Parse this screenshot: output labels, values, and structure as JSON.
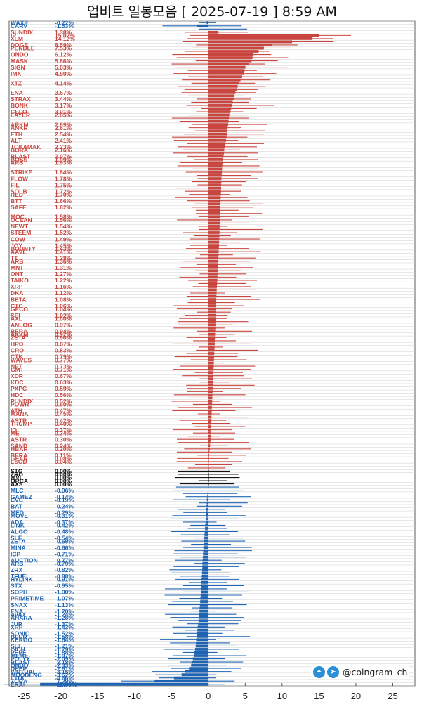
{
  "title": "업비트 일봉모음 [ 2025-07-19 ]  8:59 AM",
  "watermark": {
    "handle": "@coingram_ch",
    "icons": [
      "twitter-icon",
      "telegram-icon"
    ]
  },
  "colors": {
    "positive": "#c9453f",
    "zero": "#111111",
    "negative": "#1f64b3",
    "grid": "#cfcfcf"
  },
  "chart_data": {
    "type": "bar",
    "orientation": "horizontal",
    "xlim": [
      -27,
      28
    ],
    "xticks": [
      -25,
      -20,
      -15,
      -10,
      -5,
      0,
      5,
      10,
      15,
      20,
      25
    ],
    "grid": true,
    "rows_total": 209,
    "visible_labels": [
      {
        "row": 0,
        "name": "WAXP",
        "pct": "-0.22%"
      },
      {
        "row": 1,
        "name": "CARV",
        "pct": "-1.53%"
      },
      {
        "row": 3,
        "name": "SUNDIX",
        "pct": "1.38%"
      },
      {
        "row": 4,
        "name": "IP",
        "pct": "15.02%"
      },
      {
        "row": 5,
        "name": "XLM",
        "pct": "14.12%"
      },
      {
        "row": 7,
        "name": "DOGE",
        "pct": "8.59%"
      },
      {
        "row": 8,
        "name": "PENDLE",
        "pct": "7.53%"
      },
      {
        "row": 10,
        "name": "ONDO",
        "pct": "6.12%"
      },
      {
        "row": 12,
        "name": "MASK",
        "pct": "5.86%"
      },
      {
        "row": 14,
        "name": "SIGN",
        "pct": "5.03%"
      },
      {
        "row": 16,
        "name": "IMX",
        "pct": "4.80%"
      },
      {
        "row": 19,
        "name": "XTZ",
        "pct": "4.14%"
      },
      {
        "row": 22,
        "name": "ENA",
        "pct": "3.67%"
      },
      {
        "row": 24,
        "name": "STRAX",
        "pct": "3.44%"
      },
      {
        "row": 26,
        "name": "BONK",
        "pct": "3.17%"
      },
      {
        "row": 28,
        "name": "CELO",
        "pct": "3.01%"
      },
      {
        "row": 29,
        "name": "LAYER",
        "pct": "2.85%"
      },
      {
        "row": 32,
        "name": "ARKM",
        "pct": "2.69%"
      },
      {
        "row": 33,
        "name": "ANKR",
        "pct": "2.61%"
      },
      {
        "row": 35,
        "name": "ETH",
        "pct": "2.54%"
      },
      {
        "row": 37,
        "name": "ALT",
        "pct": "2.41%"
      },
      {
        "row": 39,
        "name": "TOKAMAK",
        "pct": "2.23%"
      },
      {
        "row": 40,
        "name": "BORA",
        "pct": "2.16%"
      },
      {
        "row": 42,
        "name": "BLAST",
        "pct": "2.07%"
      },
      {
        "row": 43,
        "name": "BOSS",
        "pct": "1.99%"
      },
      {
        "row": 44,
        "name": "ARB",
        "pct": "1.93%"
      },
      {
        "row": 47,
        "name": "STRIKE",
        "pct": "1.84%"
      },
      {
        "row": 49,
        "name": "FLOW",
        "pct": "1.78%"
      },
      {
        "row": 51,
        "name": "FIL",
        "pct": "1.75%"
      },
      {
        "row": 53,
        "name": "SOLB",
        "pct": "1.72%"
      },
      {
        "row": 54,
        "name": "RED",
        "pct": "1.70%"
      },
      {
        "row": 56,
        "name": "BTT",
        "pct": "1.66%"
      },
      {
        "row": 58,
        "name": "SAFE",
        "pct": "1.62%"
      },
      {
        "row": 61,
        "name": "MOC",
        "pct": "1.58%"
      },
      {
        "row": 62,
        "name": "OCEAN",
        "pct": "1.56%"
      },
      {
        "row": 64,
        "name": "NEWT",
        "pct": "1.54%"
      },
      {
        "row": 66,
        "name": "STEEM",
        "pct": "1.52%"
      },
      {
        "row": 68,
        "name": "COW",
        "pct": "1.49%"
      },
      {
        "row": 70,
        "name": "JOY",
        "pct": "1.45%"
      },
      {
        "row": 71,
        "name": "BOUNTY",
        "pct": "1.43%"
      },
      {
        "row": 72,
        "name": "AAVE",
        "pct": "1.41%"
      },
      {
        "row": 74,
        "name": "TT",
        "pct": "1.38%"
      },
      {
        "row": 75,
        "name": "ARB",
        "pct": "1.36%"
      },
      {
        "row": 77,
        "name": "MNT",
        "pct": "1.31%"
      },
      {
        "row": 79,
        "name": "ONT",
        "pct": "1.27%"
      },
      {
        "row": 81,
        "name": "TAIKO",
        "pct": "1.22%"
      },
      {
        "row": 83,
        "name": "XRP",
        "pct": "1.16%"
      },
      {
        "row": 85,
        "name": "DKA",
        "pct": "1.12%"
      },
      {
        "row": 87,
        "name": "BETA",
        "pct": "1.08%"
      },
      {
        "row": 89,
        "name": "CTC",
        "pct": "1.06%"
      },
      {
        "row": 90,
        "name": "GECO",
        "pct": "1.04%"
      },
      {
        "row": 92,
        "name": "SEI",
        "pct": "1.02%"
      },
      {
        "row": 93,
        "name": "AXL",
        "pct": "1.00%"
      },
      {
        "row": 95,
        "name": "ANLOG",
        "pct": "0.97%"
      },
      {
        "row": 97,
        "name": "BERA",
        "pct": "0.94%"
      },
      {
        "row": 98,
        "name": "AKKM",
        "pct": "0.92%"
      },
      {
        "row": 99,
        "name": "ZETA",
        "pct": "0.90%"
      },
      {
        "row": 101,
        "name": "HPO",
        "pct": "0.87%"
      },
      {
        "row": 103,
        "name": "CRO",
        "pct": "0.83%"
      },
      {
        "row": 105,
        "name": "CTK",
        "pct": "0.79%"
      },
      {
        "row": 106,
        "name": "WAVES",
        "pct": "0.77%"
      },
      {
        "row": 108,
        "name": "NFT",
        "pct": "0.73%"
      },
      {
        "row": 109,
        "name": "GMT",
        "pct": "0.71%"
      },
      {
        "row": 111,
        "name": "XDR",
        "pct": "0.67%"
      },
      {
        "row": 113,
        "name": "KDC",
        "pct": "0.63%"
      },
      {
        "row": 115,
        "name": "PXPC",
        "pct": "0.59%"
      },
      {
        "row": 117,
        "name": "HDC",
        "pct": "0.56%"
      },
      {
        "row": 119,
        "name": "PUNDIX",
        "pct": "0.52%"
      },
      {
        "row": 120,
        "name": "POWR",
        "pct": "0.50%"
      },
      {
        "row": 122,
        "name": "ATH",
        "pct": "0.47%"
      },
      {
        "row": 123,
        "name": "MANA",
        "pct": "0.45%"
      },
      {
        "row": 125,
        "name": "ASTR",
        "pct": "0.42%"
      },
      {
        "row": 126,
        "name": "TRUMP",
        "pct": "0.40%"
      },
      {
        "row": 128,
        "name": "IQ",
        "pct": "0.37%"
      },
      {
        "row": 129,
        "name": "ME",
        "pct": "0.34%"
      },
      {
        "row": 131,
        "name": "ASTR",
        "pct": "0.30%"
      },
      {
        "row": 133,
        "name": "SAND",
        "pct": "0.24%"
      },
      {
        "row": 134,
        "name": "HBAR",
        "pct": "0.20%"
      },
      {
        "row": 136,
        "name": "BERA",
        "pct": "0.11%"
      },
      {
        "row": 137,
        "name": "GEAR",
        "pct": "0.08%"
      },
      {
        "row": 138,
        "name": "LSOD",
        "pct": "0.04%"
      },
      {
        "row": 141,
        "name": "STG",
        "pct": "0.00%"
      },
      {
        "row": 142,
        "name": "ZRO",
        "pct": "0.00%"
      },
      {
        "row": 143,
        "name": "MVL",
        "pct": "0.00%"
      },
      {
        "row": 144,
        "name": "ORCA",
        "pct": "0.00%"
      },
      {
        "row": 145,
        "name": "AXS",
        "pct": "0.00%"
      },
      {
        "row": 147,
        "name": "MLC",
        "pct": "-0.06%"
      },
      {
        "row": 149,
        "name": "GAME2",
        "pct": "-0.14%"
      },
      {
        "row": 150,
        "name": "CVC",
        "pct": "-0.19%"
      },
      {
        "row": 152,
        "name": "BAT",
        "pct": "-0.24%"
      },
      {
        "row": 154,
        "name": "MED",
        "pct": "-0.29%"
      },
      {
        "row": 155,
        "name": "MOVE",
        "pct": "-0.31%"
      },
      {
        "row": 157,
        "name": "ADA",
        "pct": "-0.37%"
      },
      {
        "row": 158,
        "name": "LINK",
        "pct": "-0.42%"
      },
      {
        "row": 160,
        "name": "ALGO",
        "pct": "-0.48%"
      },
      {
        "row": 162,
        "name": "SLF",
        "pct": "-0.54%"
      },
      {
        "row": 163,
        "name": "ZETA",
        "pct": "-0.59%"
      },
      {
        "row": 165,
        "name": "MINA",
        "pct": "-0.66%"
      },
      {
        "row": 167,
        "name": "ICP",
        "pct": "-0.71%"
      },
      {
        "row": 169,
        "name": "AUCTION",
        "pct": "-0.77%"
      },
      {
        "row": 170,
        "name": "ARB",
        "pct": "-0.79%"
      },
      {
        "row": 172,
        "name": "ZRX",
        "pct": "-0.82%"
      },
      {
        "row": 174,
        "name": "TFUEL",
        "pct": "-0.88%"
      },
      {
        "row": 175,
        "name": "HYLINK",
        "pct": "-0.91%"
      },
      {
        "row": 177,
        "name": "STX",
        "pct": "-0.95%"
      },
      {
        "row": 179,
        "name": "SOPH",
        "pct": "-1.00%"
      },
      {
        "row": 181,
        "name": "PRIMETIME",
        "pct": "-1.07%"
      },
      {
        "row": 183,
        "name": "SNAX",
        "pct": "-1.13%"
      },
      {
        "row": 185,
        "name": "ENA",
        "pct": "-1.20%"
      },
      {
        "row": 186,
        "name": "AVAX",
        "pct": "-1.24%"
      },
      {
        "row": 187,
        "name": "AHARA",
        "pct": "-1.28%"
      },
      {
        "row": 189,
        "name": "JUP",
        "pct": "-1.37%"
      },
      {
        "row": 190,
        "name": "XRP",
        "pct": "-1.43%"
      },
      {
        "row": 192,
        "name": "SONIC",
        "pct": "-1.52%"
      },
      {
        "row": 193,
        "name": "BLUR",
        "pct": "-1.58%"
      },
      {
        "row": 194,
        "name": "KERGO",
        "pct": "-1.64%"
      },
      {
        "row": 196,
        "name": "SUI",
        "pct": "-1.71%"
      },
      {
        "row": 197,
        "name": "INCH",
        "pct": "-1.79%"
      },
      {
        "row": 198,
        "name": "PEPE",
        "pct": "-1.88%"
      },
      {
        "row": 199,
        "name": "MEME",
        "pct": "-1.97%"
      },
      {
        "row": 200,
        "name": "POLYX",
        "pct": "-2.09%"
      },
      {
        "row": 201,
        "name": "BLAST",
        "pct": "-2.18%"
      },
      {
        "row": 202,
        "name": "ONDO",
        "pct": "-2.33%"
      },
      {
        "row": 203,
        "name": "DEEP",
        "pct": "-2.61%"
      },
      {
        "row": 204,
        "name": "VIRTUAL",
        "pct": "-3.15%"
      },
      {
        "row": 205,
        "name": "MOODENG",
        "pct": "-3.62%"
      },
      {
        "row": 206,
        "name": "IOTA",
        "pct": "-4.66%"
      },
      {
        "row": 207,
        "name": "ZORA",
        "pct": "-7.29%"
      },
      {
        "row": 208,
        "name": "ERA",
        "pct": "-22.80%"
      }
    ]
  }
}
